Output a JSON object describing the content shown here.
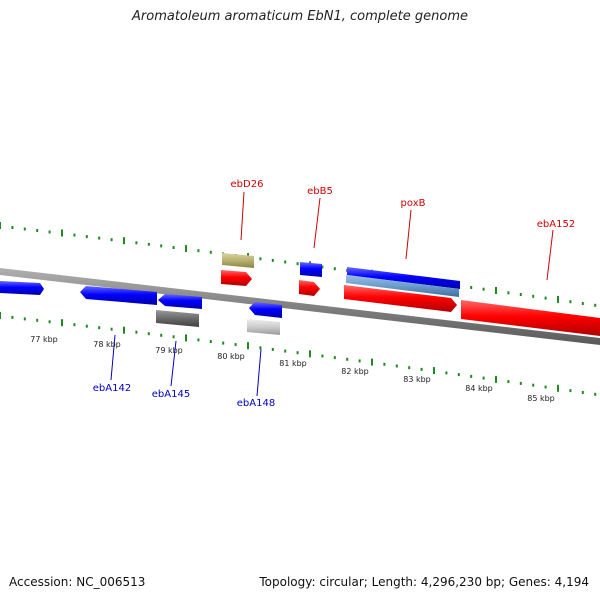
{
  "title": "Aromatoleum aromaticum EbN1, complete genome",
  "footer": {
    "accession": "Accession: NC_006513",
    "topology": "Topology: circular; Length: 4,296,230 bp; Genes: 4,194"
  },
  "colors": {
    "forward_gene": "#ff0000",
    "reverse_gene": "#0000ff",
    "tick": "#208a20",
    "forward_label": "#d00000",
    "reverse_label": "#0000c0",
    "backbone": "#888888"
  },
  "scale_labels": [
    "77 kbp",
    "78 kbp",
    "79 kbp",
    "80 kbp",
    "81 kbp",
    "82 kbp",
    "83 kbp",
    "84 kbp",
    "85 kbp"
  ],
  "forward_genes": [
    "ebD26",
    "ebB5",
    "poxB",
    "ebA152"
  ],
  "reverse_genes": [
    "ebA142",
    "ebA145",
    "ebA148"
  ]
}
